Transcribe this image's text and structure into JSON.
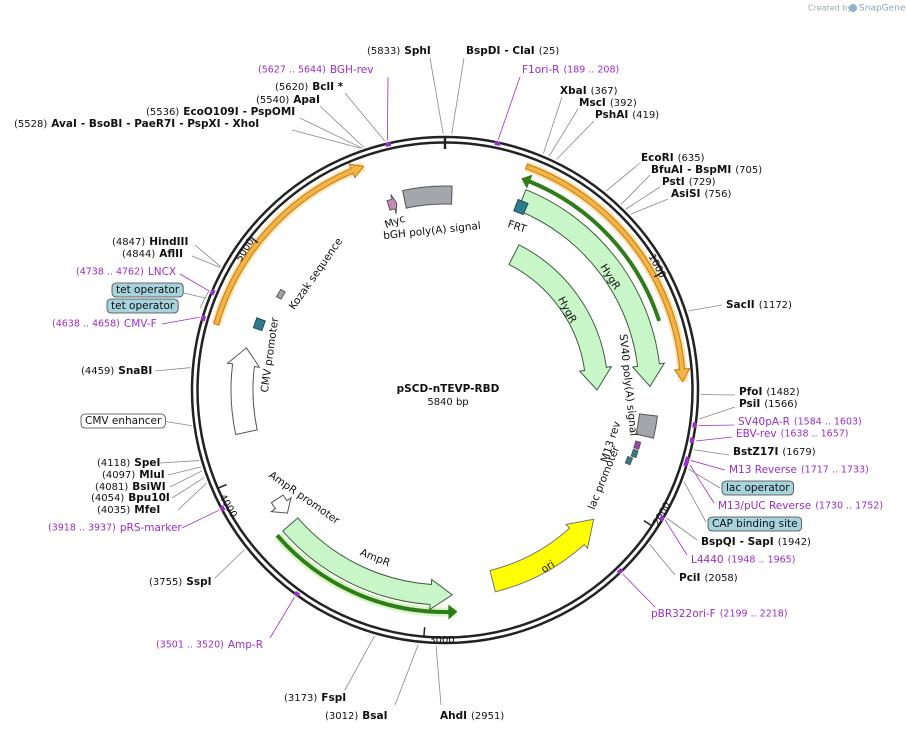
{
  "header": {
    "created_by": "Created by",
    "brand": "SnapGene"
  },
  "plasmid": {
    "name": "pSCD-nTEVP-RBD",
    "size": "5840 bp"
  },
  "sites": [
    {
      "position": "(5833)",
      "names": [
        "SphI"
      ]
    },
    {
      "position": "(25)",
      "names": [
        "BspDI",
        "- ClaI"
      ]
    },
    {
      "position": "(5620)",
      "names": [
        "BclI *"
      ]
    },
    {
      "position": "(367)",
      "names": [
        "XbaI"
      ]
    },
    {
      "position": "(5540)",
      "names": [
        "ApaI"
      ]
    },
    {
      "position": "(392)",
      "names": [
        "MscI"
      ]
    },
    {
      "position": "(5536)",
      "names": [
        "EcoO109I",
        "- PspOMI"
      ]
    },
    {
      "position": "(419)",
      "names": [
        "PshAI"
      ]
    },
    {
      "position": "(5528)",
      "names": [
        "AvaI",
        "- BsoBI",
        "- PaeR7I",
        "- PspXI",
        "- XhoI"
      ]
    },
    {
      "position": "(635)",
      "names": [
        "EcoRI"
      ]
    },
    {
      "position": "(705)",
      "names": [
        "BfuAI",
        "- BspMI"
      ]
    },
    {
      "position": "(729)",
      "names": [
        "PstI"
      ]
    },
    {
      "position": "(756)",
      "names": [
        "AsiSI"
      ]
    },
    {
      "position": "(1172)",
      "names": [
        "SacII"
      ]
    },
    {
      "position": "(1482)",
      "names": [
        "PfoI"
      ]
    },
    {
      "position": "(1566)",
      "names": [
        "PsiI"
      ]
    },
    {
      "position": "(1679)",
      "names": [
        "BstZ17I"
      ]
    },
    {
      "position": "(1942)",
      "names": [
        "BspQI",
        "- SapI"
      ]
    },
    {
      "position": "(2058)",
      "names": [
        "PciI"
      ]
    },
    {
      "position": "(2951)",
      "names": [
        "AhdI"
      ]
    },
    {
      "position": "(3012)",
      "names": [
        "BsaI"
      ]
    },
    {
      "position": "(3173)",
      "names": [
        "FspI"
      ]
    },
    {
      "position": "(3755)",
      "names": [
        "SspI"
      ]
    },
    {
      "position": "(4118)",
      "names": [
        "SpeI"
      ]
    },
    {
      "position": "(4097)",
      "names": [
        "MluI"
      ]
    },
    {
      "position": "(4081)",
      "names": [
        "BsiWI"
      ]
    },
    {
      "position": "(4054)",
      "names": [
        "Bpu10I"
      ]
    },
    {
      "position": "(4035)",
      "names": [
        "MfeI"
      ]
    },
    {
      "position": "(4459)",
      "names": [
        "SnaBI"
      ]
    },
    {
      "position": "(4844)",
      "names": [
        "AflII"
      ]
    },
    {
      "position": "(4847)",
      "names": [
        "HindIII"
      ]
    }
  ],
  "primers": [
    {
      "name": "BGH-rev",
      "range": "(5627 .. 5644)"
    },
    {
      "name": "F1ori-R",
      "range": "(189 .. 208)"
    },
    {
      "name": "SV40pA-R",
      "range": "(1584 .. 1603)"
    },
    {
      "name": "EBV-rev",
      "range": "(1638 .. 1657)"
    },
    {
      "name": "M13 Reverse",
      "range": "(1717 .. 1733)"
    },
    {
      "name": "M13/pUC Reverse",
      "range": "(1730 .. 1752)"
    },
    {
      "name": "L4440",
      "range": "(1948 .. 1965)"
    },
    {
      "name": "pBR322ori-F",
      "range": "(2199 .. 2218)"
    },
    {
      "name": "Amp-R",
      "range": "(3501 .. 3520)"
    },
    {
      "name": "pRS-marker",
      "range": "(3918 .. 3937)"
    },
    {
      "name": "CMV-F",
      "range": "(4638 .. 4658)"
    },
    {
      "name": "LNCX",
      "range": "(4738 .. 4762)"
    }
  ],
  "boxed_features": [
    "tet operator",
    "tet operator",
    "CMV enhancer",
    "lac operator",
    "CAP binding site"
  ],
  "feature_labels": [
    "Myc",
    "bGH poly(A) signal",
    "FRT",
    "HygR",
    "HygR",
    "SV40 poly(A) signal",
    "M13 rev",
    "lac promoter",
    "ori",
    "AmpR",
    "AmpR promoter",
    "CMV promoter",
    "Kozak sequence"
  ],
  "ruler": [
    "1000",
    "2000",
    "3000",
    "4000",
    "5000"
  ]
}
